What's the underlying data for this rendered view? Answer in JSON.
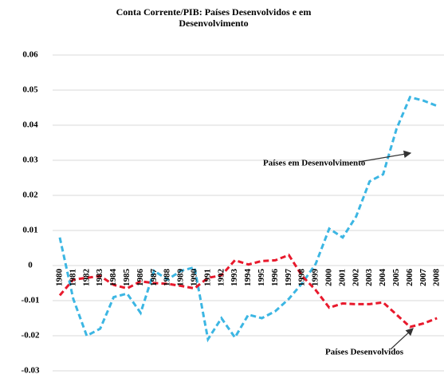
{
  "chart_data": {
    "type": "line",
    "title": "Conta Corrente/PIB: Países Desenvolvidos e em Desenvolvimento",
    "categories": [
      "1980",
      "1981",
      "1982",
      "1983",
      "1984",
      "1985",
      "1986",
      "1987",
      "1988",
      "1989",
      "1990",
      "1991",
      "1992",
      "1993",
      "1994",
      "1995",
      "1996",
      "1997",
      "1998",
      "1999",
      "2000",
      "2001",
      "2002",
      "2003",
      "2004",
      "2005",
      "2006",
      "2007",
      "2008"
    ],
    "series": [
      {
        "name": "Países em Desenvolvimento",
        "color": "#3cb6e3",
        "values": [
          0.008,
          -0.0095,
          -0.02,
          -0.018,
          -0.009,
          -0.008,
          -0.0135,
          -0.0015,
          -0.004,
          -0.0015,
          -0.0005,
          -0.021,
          -0.015,
          -0.0205,
          -0.014,
          -0.015,
          -0.013,
          -0.0095,
          -0.005,
          0.0005,
          0.0105,
          0.008,
          0.014,
          0.024,
          0.026,
          0.039,
          0.048,
          0.047,
          0.0455
        ]
      },
      {
        "name": "Países Desenvolvidos",
        "color": "#e8192c",
        "values": [
          -0.0085,
          -0.004,
          -0.0035,
          -0.003,
          -0.0055,
          -0.0065,
          -0.0045,
          -0.005,
          -0.0052,
          -0.0058,
          -0.0065,
          -0.0035,
          -0.0028,
          0.0015,
          0.0003,
          0.0013,
          0.0015,
          0.003,
          -0.003,
          -0.007,
          -0.012,
          -0.0108,
          -0.011,
          -0.011,
          -0.0105,
          -0.014,
          -0.0175,
          -0.0165,
          -0.015
        ]
      }
    ],
    "ylim": [
      -0.03,
      0.06
    ],
    "yticks": [
      -0.03,
      -0.02,
      -0.01,
      0,
      0.01,
      0.02,
      0.03,
      0.04,
      0.05,
      0.06
    ],
    "grid": true
  }
}
